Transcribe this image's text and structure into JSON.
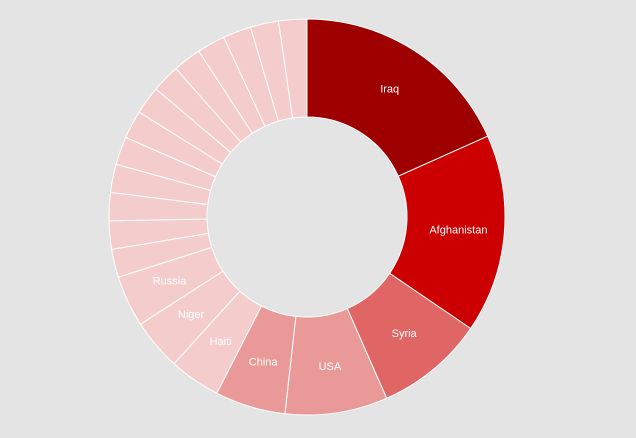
{
  "chart_data": {
    "type": "pie",
    "variant": "donut",
    "title": "",
    "slices": [
      {
        "label": "Iraq",
        "value": 17.5,
        "color": "#9e0000"
      },
      {
        "label": "Afghanistan",
        "value": 15.5,
        "color": "#cc0000"
      },
      {
        "label": "Syria",
        "value": 8.5,
        "color": "#e06666"
      },
      {
        "label": "USA",
        "value": 8.0,
        "color": "#ea9999"
      },
      {
        "label": "China",
        "value": 5.5,
        "color": "#ea9999"
      },
      {
        "label": "Haiti",
        "value": 4.0,
        "color": "#f4cccc"
      },
      {
        "label": "Niger",
        "value": 4.0,
        "color": "#f4cccc"
      },
      {
        "label": "Russia",
        "value": 4.0,
        "color": "#f4cccc"
      },
      {
        "label": "",
        "value": 2.2,
        "color": "#f4cccc"
      },
      {
        "label": "",
        "value": 2.2,
        "color": "#f4cccc"
      },
      {
        "label": "",
        "value": 2.2,
        "color": "#f4cccc"
      },
      {
        "label": "",
        "value": 2.2,
        "color": "#f4cccc"
      },
      {
        "label": "",
        "value": 2.2,
        "color": "#f4cccc"
      },
      {
        "label": "",
        "value": 2.2,
        "color": "#f4cccc"
      },
      {
        "label": "",
        "value": 2.2,
        "color": "#f4cccc"
      },
      {
        "label": "",
        "value": 2.2,
        "color": "#f4cccc"
      },
      {
        "label": "",
        "value": 2.2,
        "color": "#f4cccc"
      },
      {
        "label": "",
        "value": 2.2,
        "color": "#f4cccc"
      },
      {
        "label": "",
        "value": 2.2,
        "color": "#f4cccc"
      },
      {
        "label": "",
        "value": 2.2,
        "color": "#f4cccc"
      },
      {
        "label": "",
        "value": 2.2,
        "color": "#f4cccc"
      }
    ]
  }
}
